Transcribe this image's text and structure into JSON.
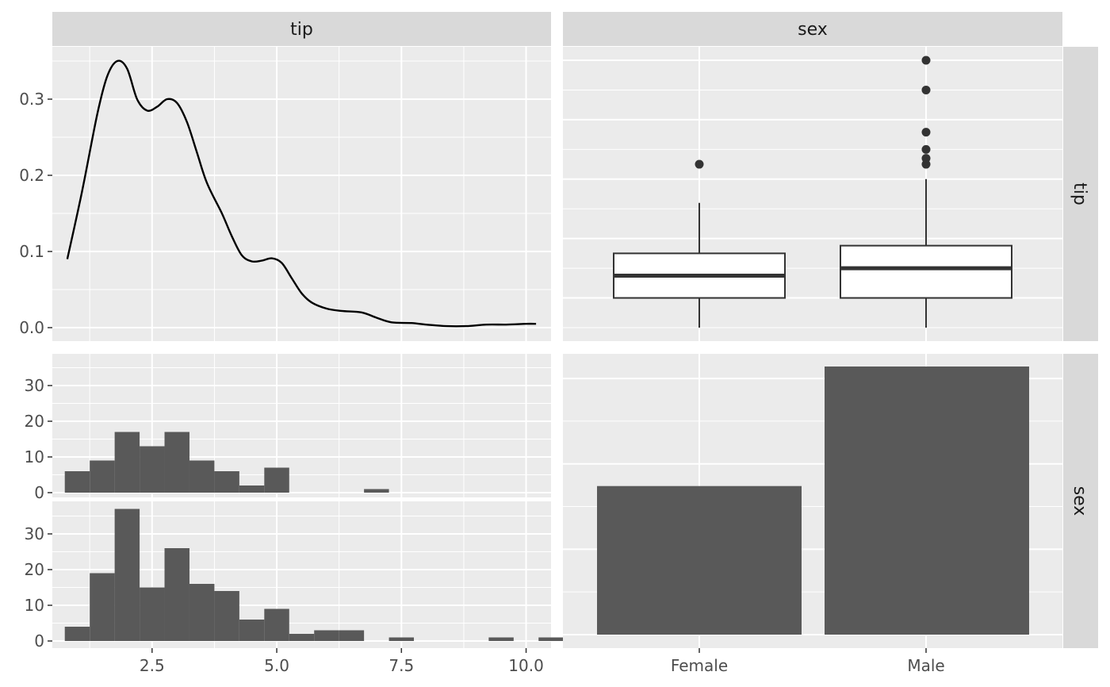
{
  "chart_data": {
    "type": "pairs",
    "variables": [
      "tip",
      "sex"
    ],
    "colors": {
      "panel_bg": "#ebebeb",
      "strip_bg": "#d9d9d9",
      "grid": "#ffffff",
      "bar_fill": "#595959",
      "line": "#000000",
      "box_line": "#333333",
      "tick_text": "#4d4d4d",
      "strip_text": "#1a1a1a"
    },
    "panels": [
      {
        "position": "tip-tip",
        "type": "density",
        "x_range": [
          0.5,
          10.5
        ],
        "y_range": [
          0,
          0.365
        ],
        "y_ticks": [
          "0.0",
          "0.1",
          "0.2",
          "0.3"
        ],
        "points": [
          [
            0.8,
            0.09
          ],
          [
            1.1,
            0.18
          ],
          [
            1.4,
            0.28
          ],
          [
            1.6,
            0.33
          ],
          [
            1.8,
            0.35
          ],
          [
            2.0,
            0.34
          ],
          [
            2.2,
            0.3
          ],
          [
            2.4,
            0.285
          ],
          [
            2.6,
            0.29
          ],
          [
            2.8,
            0.3
          ],
          [
            3.0,
            0.295
          ],
          [
            3.2,
            0.27
          ],
          [
            3.4,
            0.23
          ],
          [
            3.6,
            0.19
          ],
          [
            3.9,
            0.15
          ],
          [
            4.1,
            0.12
          ],
          [
            4.3,
            0.095
          ],
          [
            4.5,
            0.087
          ],
          [
            4.7,
            0.088
          ],
          [
            4.9,
            0.091
          ],
          [
            5.1,
            0.085
          ],
          [
            5.3,
            0.065
          ],
          [
            5.5,
            0.045
          ],
          [
            5.7,
            0.033
          ],
          [
            6.0,
            0.025
          ],
          [
            6.3,
            0.022
          ],
          [
            6.7,
            0.02
          ],
          [
            7.0,
            0.013
          ],
          [
            7.3,
            0.007
          ],
          [
            7.7,
            0.006
          ],
          [
            8.0,
            0.004
          ],
          [
            8.4,
            0.002
          ],
          [
            8.8,
            0.002
          ],
          [
            9.2,
            0.004
          ],
          [
            9.6,
            0.004
          ],
          [
            10.0,
            0.005
          ],
          [
            10.2,
            0.005
          ]
        ]
      },
      {
        "position": "tip-sex",
        "type": "boxplot",
        "categories": [
          "Female",
          "Male"
        ],
        "value_range": [
          0.5,
          10.5
        ],
        "boxes": [
          {
            "category": "Female",
            "min": 1.0,
            "q1": 2.0,
            "median": 2.75,
            "q3": 3.5,
            "max": 5.2,
            "outliers": [
              6.5
            ]
          },
          {
            "category": "Male",
            "min": 1.0,
            "q1": 2.0,
            "median": 3.0,
            "q3": 3.76,
            "max": 6.0,
            "outliers": [
              6.5,
              6.7,
              7.0,
              7.58,
              9.0,
              10.0
            ]
          }
        ]
      },
      {
        "position": "sex-tip",
        "type": "faceted-histogram",
        "x_range": [
          0.5,
          10.5
        ],
        "x_ticks": [
          "2.5",
          "5.0",
          "7.5",
          "10.0"
        ],
        "bin_width": 0.5,
        "facets": [
          {
            "category": "Female",
            "y_range": [
              0,
              38
            ],
            "y_ticks": [
              "0",
              "10",
              "20",
              "30"
            ],
            "counts": [
              6,
              9,
              17,
              13,
              17,
              9,
              6,
              2,
              7,
              0,
              0,
              0,
              1,
              0,
              0,
              0,
              0,
              0,
              0,
              0
            ]
          },
          {
            "category": "Male",
            "y_range": [
              0,
              38
            ],
            "y_ticks": [
              "0",
              "10",
              "20",
              "30"
            ],
            "counts": [
              4,
              19,
              37,
              15,
              26,
              16,
              14,
              6,
              9,
              2,
              3,
              3,
              0,
              1,
              0,
              0,
              0,
              1,
              0,
              1
            ]
          }
        ]
      },
      {
        "position": "sex-sex",
        "type": "bar",
        "categories": [
          "Female",
          "Male"
        ],
        "values": [
          87,
          157
        ],
        "y_range": [
          0,
          165
        ]
      }
    ]
  }
}
